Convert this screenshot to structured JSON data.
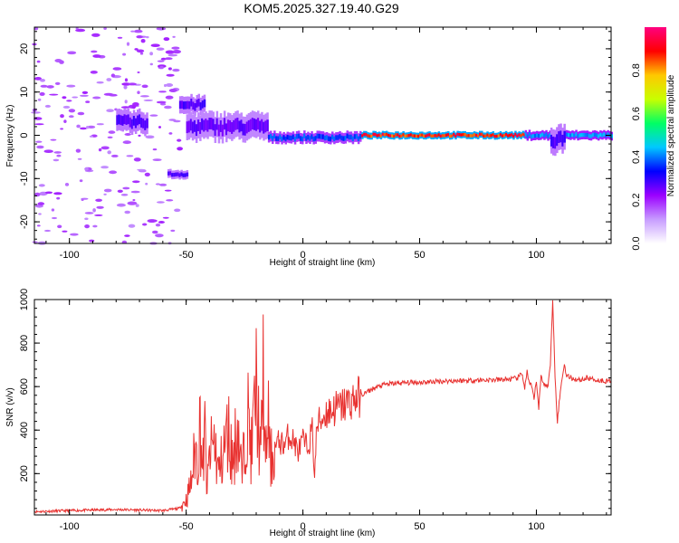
{
  "title": "KOM5.2025.327.19.40.G29",
  "chart_data": [
    {
      "type": "heatmap",
      "xlabel": "Height of straight line (km)",
      "ylabel": "Frequency (Hz)",
      "xlim": [
        -115,
        132
      ],
      "ylim": [
        -25,
        25
      ],
      "xticks": [
        -100,
        -50,
        0,
        50,
        100
      ],
      "yticks": [
        -20,
        -10,
        0,
        10,
        20
      ],
      "colorbar": {
        "label": "Normalized spectral amplitude",
        "range": [
          0,
          1
        ],
        "ticks": [
          0,
          0.2,
          0.4,
          0.6,
          0.8
        ],
        "colors": [
          "#ffffff",
          "#c79cff",
          "#9b00ff",
          "#0000ff",
          "#00c8ff",
          "#00ff64",
          "#c8ff00",
          "#ffc800",
          "#ff0000",
          "#ff0080"
        ]
      },
      "features": [
        {
          "x_range": [
            -115,
            -52
          ],
          "freq_range": [
            -25,
            25
          ],
          "amplitude": 0.12
        },
        {
          "x_range": [
            -80,
            -67
          ],
          "freq_center": 3,
          "freq_width": 5,
          "amplitude": 0.3
        },
        {
          "x_range": [
            -58,
            -50
          ],
          "freq_center": -9,
          "freq_width": 2,
          "amplitude": 0.3
        },
        {
          "x_range": [
            -53,
            -42
          ],
          "freq_center": 7,
          "freq_width": 4,
          "amplitude": 0.3
        },
        {
          "x_range": [
            -50,
            -15
          ],
          "freq_center": 2,
          "freq_width": 6,
          "amplitude": 0.28
        },
        {
          "x_range": [
            -15,
            25
          ],
          "freq_center": -0.5,
          "freq_width": 2.5,
          "amplitude": 0.4
        },
        {
          "x_range": [
            25,
            95
          ],
          "freq_center": 0,
          "freq_width": 1.6,
          "amplitude": 0.95
        },
        {
          "x_range": [
            95,
            132
          ],
          "freq_center": 0,
          "freq_width": 2,
          "amplitude": 0.45
        },
        {
          "x_range": [
            106,
            112
          ],
          "freq_center": -1,
          "freq_width": 6,
          "amplitude": 0.3
        }
      ]
    },
    {
      "type": "line",
      "xlabel": "Height of straight line (km)",
      "ylabel": "SNR (v/v)",
      "xlim": [
        -115,
        132
      ],
      "ylim": [
        10,
        1000
      ],
      "xticks": [
        -100,
        -50,
        0,
        50,
        100
      ],
      "yticks": [
        200,
        400,
        600,
        800,
        1000
      ],
      "color": "#e8312f",
      "series": [
        {
          "x": [
            -115,
            -100,
            -80,
            -60,
            -53,
            -50,
            -48,
            -46,
            -45,
            -44,
            -43,
            -42,
            -41,
            -40,
            -38,
            -36,
            -34,
            -32,
            -30,
            -28,
            -26,
            -24,
            -22,
            -20,
            -18,
            -17,
            -16,
            -15,
            -14,
            -12,
            -10,
            -8,
            -6,
            -4,
            -2,
            0,
            2,
            4,
            5,
            6,
            8,
            10,
            12,
            14,
            16,
            18,
            20,
            25,
            30,
            35,
            40,
            45,
            50,
            55,
            60,
            65,
            70,
            75,
            80,
            85,
            90,
            92,
            94,
            95,
            96,
            97,
            98,
            99,
            100,
            101,
            102,
            103,
            104,
            105,
            106,
            107,
            108,
            109,
            110,
            111,
            112,
            113,
            115,
            118,
            122,
            126,
            130,
            132
          ],
          "y": [
            25,
            30,
            35,
            30,
            40,
            80,
            150,
            320,
            250,
            460,
            200,
            380,
            120,
            280,
            350,
            200,
            300,
            400,
            250,
            430,
            180,
            500,
            300,
            600,
            250,
            700,
            200,
            500,
            250,
            320,
            350,
            330,
            380,
            350,
            300,
            350,
            320,
            400,
            190,
            420,
            450,
            480,
            490,
            500,
            505,
            520,
            530,
            560,
            590,
            610,
            615,
            618,
            620,
            622,
            625,
            627,
            628,
            630,
            630,
            632,
            635,
            640,
            660,
            590,
            670,
            610,
            600,
            540,
            630,
            500,
            650,
            620,
            600,
            610,
            700,
            1000,
            650,
            440,
            550,
            640,
            700,
            650,
            640,
            630,
            640,
            630,
            625,
            630
          ]
        }
      ]
    }
  ]
}
